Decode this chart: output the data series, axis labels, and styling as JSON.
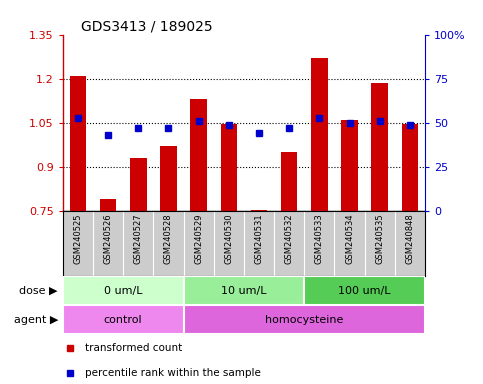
{
  "title": "GDS3413 / 189025",
  "samples": [
    "GSM240525",
    "GSM240526",
    "GSM240527",
    "GSM240528",
    "GSM240529",
    "GSM240530",
    "GSM240531",
    "GSM240532",
    "GSM240533",
    "GSM240534",
    "GSM240535",
    "GSM240848"
  ],
  "transformed_count": [
    1.21,
    0.79,
    0.93,
    0.97,
    1.13,
    1.045,
    0.755,
    0.95,
    1.27,
    1.06,
    1.185,
    1.045
  ],
  "percentile_rank": [
    53,
    43,
    47,
    47,
    51,
    49,
    44,
    47,
    53,
    50,
    51,
    49
  ],
  "ylim_left": [
    0.75,
    1.35
  ],
  "ylim_right": [
    0,
    100
  ],
  "yticks_left": [
    0.75,
    0.9,
    1.05,
    1.2,
    1.35
  ],
  "yticks_right": [
    0,
    25,
    50,
    75,
    100
  ],
  "ytick_labels_right": [
    "0",
    "25",
    "50",
    "75",
    "100%"
  ],
  "bar_color": "#cc0000",
  "dot_color": "#0000cc",
  "dose_groups": [
    {
      "label": "0 um/L",
      "start": 0,
      "end": 3,
      "color": "#ccffcc"
    },
    {
      "label": "10 um/L",
      "start": 4,
      "end": 7,
      "color": "#99ee99"
    },
    {
      "label": "100 um/L",
      "start": 8,
      "end": 11,
      "color": "#55cc55"
    }
  ],
  "agent_groups": [
    {
      "label": "control",
      "start": 0,
      "end": 3,
      "color": "#ee88ee"
    },
    {
      "label": "homocysteine",
      "start": 4,
      "end": 11,
      "color": "#dd66dd"
    }
  ],
  "dose_label": "dose",
  "agent_label": "agent",
  "legend_bar_label": "transformed count",
  "legend_dot_label": "percentile rank within the sample",
  "background_color": "#ffffff",
  "plot_bg_color": "#ffffff",
  "tick_label_color_left": "#cc0000",
  "tick_label_color_right": "#0000cc",
  "title_color": "#000000",
  "grid_color": "#000000",
  "sample_bg_color": "#cccccc",
  "grid_dotted_lines": [
    0.9,
    1.05,
    1.2
  ]
}
